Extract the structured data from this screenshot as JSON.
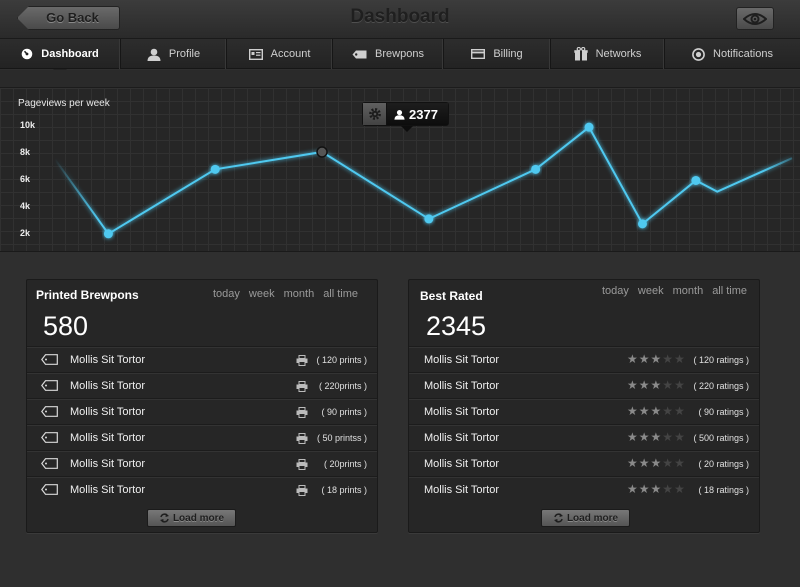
{
  "header": {
    "back_label": "Go Back",
    "title": "Dashboard",
    "preview_icon": "eye-icon"
  },
  "tabs": [
    {
      "label": "Dashboard",
      "icon": "dashboard-icon",
      "active": true
    },
    {
      "label": "Profile",
      "icon": "user-icon",
      "active": false
    },
    {
      "label": "Account",
      "icon": "account-card-icon",
      "active": false
    },
    {
      "label": "Brewpons",
      "icon": "tag-icon",
      "active": false
    },
    {
      "label": "Billing",
      "icon": "credit-card-icon",
      "active": false
    },
    {
      "label": "Networks",
      "icon": "gift-icon",
      "active": false
    },
    {
      "label": "Notifications",
      "icon": "target-icon",
      "active": false
    }
  ],
  "chart_data": {
    "type": "line",
    "title": "Pageviews per week",
    "y_ticks": [
      "10k",
      "8k",
      "6k",
      "4k",
      "2k"
    ],
    "ylim": [
      1000,
      11000
    ],
    "points": [
      {
        "x": 0.5,
        "y": 7500
      },
      {
        "x": 1,
        "y": 1500
      },
      {
        "x": 2,
        "y": 6700
      },
      {
        "x": 3,
        "y": 8100
      },
      {
        "x": 4,
        "y": 2700
      },
      {
        "x": 5,
        "y": 6700
      },
      {
        "x": 5.5,
        "y": 10100
      },
      {
        "x": 6,
        "y": 2300
      },
      {
        "x": 6.5,
        "y": 5800
      },
      {
        "x": 6.7,
        "y": 4900
      },
      {
        "x": 7.4,
        "y": 7600
      }
    ],
    "markers": [
      1,
      2,
      3,
      4,
      5,
      6,
      7,
      8
    ],
    "highlight_index": 3,
    "tooltip_value": "2377",
    "color": "#4fc9f0"
  },
  "printed": {
    "title": "Printed Brewpons",
    "filters": [
      "today",
      "week",
      "month",
      "all time"
    ],
    "total": "580",
    "rows": [
      {
        "name": "Mollis Sit Tortor",
        "meta": "( 120 prints )"
      },
      {
        "name": "Mollis Sit Tortor",
        "meta": "( 220prints )"
      },
      {
        "name": "Mollis Sit Tortor",
        "meta": "( 90 prints )"
      },
      {
        "name": "Mollis Sit Tortor",
        "meta": "( 50 printss )"
      },
      {
        "name": "Mollis Sit Tortor",
        "meta": "( 20prints )"
      },
      {
        "name": "Mollis Sit Tortor",
        "meta": "( 18 prints )"
      }
    ],
    "load_more": "Load more"
  },
  "rated": {
    "title": "Best Rated",
    "filters": [
      "today",
      "week",
      "month",
      "all time"
    ],
    "total": "2345",
    "rows": [
      {
        "name": "Mollis Sit Tortor",
        "stars": 3,
        "meta": "( 120 ratings )"
      },
      {
        "name": "Mollis Sit Tortor",
        "stars": 3,
        "meta": "( 220 ratings )"
      },
      {
        "name": "Mollis Sit Tortor",
        "stars": 3,
        "meta": "( 90 ratings )"
      },
      {
        "name": "Mollis Sit Tortor",
        "stars": 3,
        "meta": "( 500 ratings )"
      },
      {
        "name": "Mollis Sit Tortor",
        "stars": 3,
        "meta": "( 20 ratings )"
      },
      {
        "name": "Mollis Sit Tortor",
        "stars": 3,
        "meta": "( 18 ratings )"
      }
    ],
    "load_more": "Load more"
  }
}
